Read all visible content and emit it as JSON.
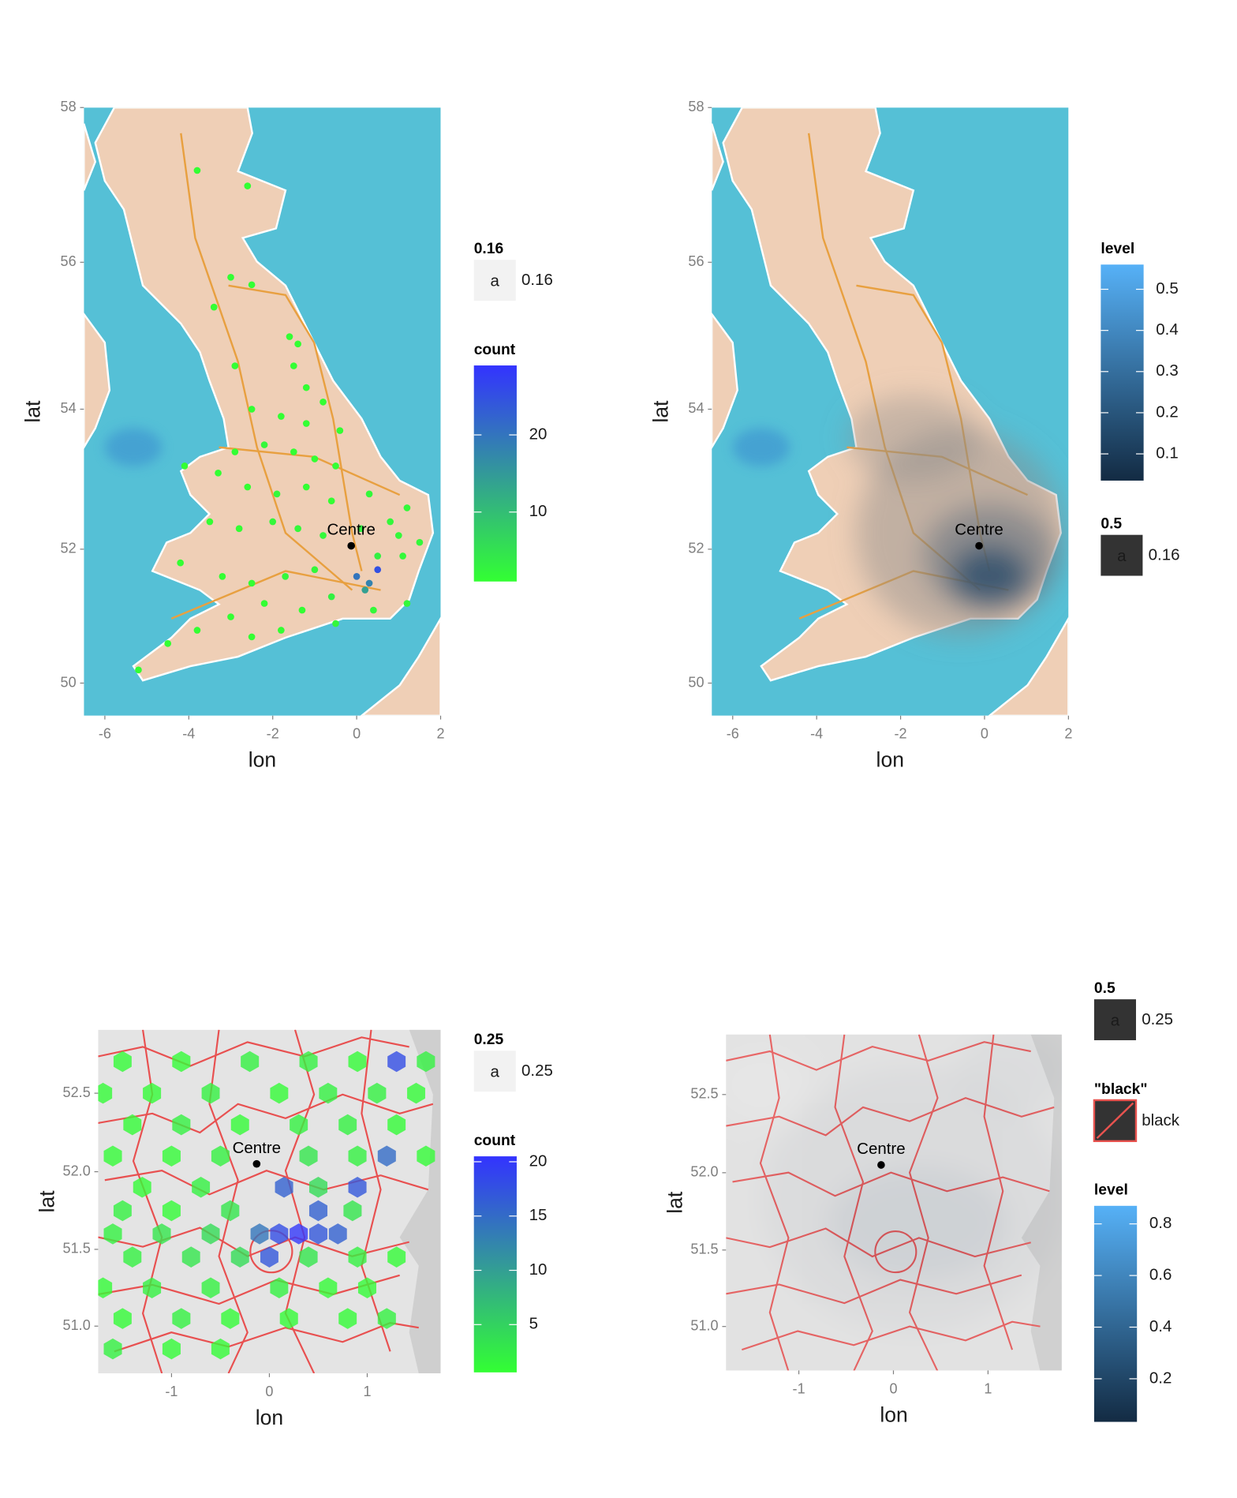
{
  "panels": [
    {
      "xlabel": "lon",
      "ylabel": "lat",
      "projection": "mercator",
      "xlim": [
        -6.5,
        2
      ],
      "ylim": [
        49.5,
        58
      ],
      "xticks": [
        -6,
        -4,
        -2,
        0,
        2
      ],
      "yticks": [
        50,
        52,
        54,
        56,
        58
      ],
      "centre": {
        "label": "Centre",
        "lon": -0.13,
        "lat": 52.05
      },
      "layer": "points",
      "points": {
        "lon": [
          -3.8,
          -2.6,
          -3.0,
          -2.5,
          -3.4,
          -1.6,
          -1.4,
          -2.9,
          -1.5,
          -1.2,
          -0.8,
          -2.5,
          -1.8,
          -1.2,
          -0.4,
          -2.9,
          -2.2,
          -1.5,
          -1.0,
          -0.5,
          -4.1,
          -3.3,
          -2.6,
          -1.9,
          -1.2,
          -0.6,
          0.3,
          1.2,
          0.8,
          -3.5,
          -2.8,
          -2.0,
          -1.4,
          -0.8,
          0.1,
          1.0,
          1.5,
          -4.2,
          -3.2,
          -2.5,
          -1.7,
          -1.0,
          0.5,
          1.1,
          0.0,
          0.3,
          0.5,
          0.2,
          -0.6,
          -1.3,
          -2.2,
          -3.0,
          -3.8,
          -4.5,
          -5.2,
          -1.8,
          -0.5,
          0.4,
          1.2,
          -2.5
        ],
        "lat": [
          57.2,
          57.0,
          55.8,
          55.7,
          55.4,
          55.0,
          54.9,
          54.6,
          54.6,
          54.3,
          54.1,
          54.0,
          53.9,
          53.8,
          53.7,
          53.4,
          53.5,
          53.4,
          53.3,
          53.2,
          53.2,
          53.1,
          52.9,
          52.8,
          52.9,
          52.7,
          52.8,
          52.6,
          52.4,
          52.4,
          52.3,
          52.4,
          52.3,
          52.2,
          52.3,
          52.2,
          52.1,
          51.8,
          51.6,
          51.5,
          51.6,
          51.7,
          51.9,
          51.9,
          51.6,
          51.5,
          51.7,
          51.4,
          51.3,
          51.1,
          51.2,
          51.0,
          50.8,
          50.6,
          50.2,
          50.8,
          50.9,
          51.1,
          51.2,
          50.7
        ],
        "count": [
          1,
          1,
          1,
          1,
          1,
          1,
          1,
          1,
          1,
          1,
          1,
          1,
          1,
          1,
          1,
          1,
          2,
          1,
          1,
          1,
          1,
          1,
          1,
          2,
          1,
          1,
          2,
          2,
          2,
          1,
          1,
          2,
          2,
          2,
          3,
          2,
          2,
          1,
          1,
          1,
          2,
          2,
          3,
          2,
          20,
          18,
          25,
          14,
          3,
          1,
          1,
          1,
          1,
          1,
          1,
          1,
          2,
          2,
          2,
          1
        ]
      },
      "legend": [
        {
          "title": "0.16",
          "key": {
            "text": "a",
            "fill": "#f2f2f2"
          },
          "label": "0.16"
        },
        {
          "title": "count",
          "colorbar": {
            "limits": [
              1,
              29
            ],
            "ticks": [
              10,
              20
            ],
            "colors": [
              "#33ff33",
              "#3333ff"
            ]
          }
        }
      ]
    },
    {
      "xlabel": "lon",
      "ylabel": "lat",
      "projection": "mercator",
      "xlim": [
        -6.5,
        2
      ],
      "ylim": [
        49.5,
        58
      ],
      "xticks": [
        -6,
        -4,
        -2,
        0,
        2
      ],
      "yticks": [
        50,
        52,
        54,
        56,
        58
      ],
      "centre": {
        "label": "Centre",
        "lon": -0.13,
        "lat": 52.05
      },
      "layer": "density",
      "legend": [
        {
          "title": "level",
          "colorbar": {
            "limits": [
              0.035,
              0.56
            ],
            "ticks": [
              0.1,
              0.2,
              0.3,
              0.4,
              0.5
            ],
            "colors": [
              "#132b43",
              "#56b1f7"
            ]
          }
        },
        {
          "title": "0.5",
          "key": {
            "text": "a",
            "fill": "#333333"
          },
          "label": "0.16"
        }
      ]
    },
    {
      "xlabel": "lon",
      "ylabel": "lat",
      "projection": "mercator",
      "xlim": [
        -1.75,
        1.75
      ],
      "ylim": [
        50.69,
        52.9
      ],
      "xticks": [
        -1,
        0,
        1
      ],
      "yticks": [
        {
          "value": 51,
          "label": "51.0"
        },
        51.5,
        {
          "value": 52,
          "label": "52.0"
        },
        52.5
      ],
      "centre": {
        "label": "Centre",
        "lon": -0.13,
        "lat": 52.05
      },
      "layer": "hex",
      "points": {
        "lon": [
          -1.5,
          -0.9,
          -0.2,
          0.4,
          0.9,
          1.3,
          1.6,
          -1.7,
          -1.2,
          -0.6,
          0.1,
          0.6,
          1.1,
          1.5,
          -1.4,
          -0.9,
          -0.3,
          0.3,
          0.8,
          1.3,
          -1.6,
          -1.0,
          -0.5,
          0.4,
          0.9,
          1.2,
          1.6,
          -1.3,
          -0.7,
          0.15,
          0.5,
          0.9,
          -1.5,
          -1.0,
          -0.4,
          0.5,
          0.85,
          -1.6,
          -1.1,
          -0.6,
          -0.1,
          0.1,
          0.3,
          0.5,
          0.7,
          -1.4,
          -0.8,
          -0.3,
          0.0,
          0.4,
          0.9,
          1.3,
          -1.7,
          -1.2,
          -0.6,
          0.1,
          0.6,
          1.0,
          -1.5,
          -0.9,
          -0.4,
          0.2,
          0.8,
          1.2,
          -1.6,
          -1.0,
          -0.5
        ],
        "lat": [
          52.7,
          52.7,
          52.7,
          52.7,
          52.7,
          52.7,
          52.7,
          52.5,
          52.5,
          52.5,
          52.5,
          52.5,
          52.5,
          52.5,
          52.3,
          52.3,
          52.3,
          52.3,
          52.3,
          52.3,
          52.1,
          52.1,
          52.1,
          52.1,
          52.1,
          52.1,
          52.1,
          51.9,
          51.9,
          51.9,
          51.9,
          51.9,
          51.75,
          51.75,
          51.75,
          51.75,
          51.75,
          51.6,
          51.6,
          51.6,
          51.6,
          51.6,
          51.6,
          51.6,
          51.6,
          51.45,
          51.45,
          51.45,
          51.45,
          51.45,
          51.45,
          51.45,
          51.25,
          51.25,
          51.25,
          51.25,
          51.25,
          51.25,
          51.05,
          51.05,
          51.05,
          51.05,
          51.05,
          51.05,
          50.85,
          50.85,
          50.85
        ],
        "count": [
          1,
          1,
          2,
          2,
          1,
          18,
          2,
          1,
          1,
          2,
          1,
          2,
          2,
          1,
          1,
          2,
          1,
          2,
          2,
          1,
          1,
          1,
          2,
          3,
          2,
          15,
          1,
          1,
          2,
          16,
          4,
          17,
          2,
          1,
          3,
          16,
          3,
          2,
          3,
          4,
          14,
          18,
          20,
          17,
          16,
          2,
          3,
          4,
          17,
          3,
          2,
          1,
          1,
          2,
          2,
          2,
          1,
          1,
          1,
          2,
          1,
          1,
          1,
          2,
          2,
          1,
          1
        ]
      },
      "legend": [
        {
          "title": "0.25",
          "key": {
            "text": "a",
            "fill": "#f2f2f2"
          },
          "label": "0.25"
        },
        {
          "title": "count",
          "colorbar": {
            "limits": [
              0.6,
              20.5
            ],
            "ticks": [
              5,
              10,
              15,
              20
            ],
            "colors": [
              "#33ff33",
              "#3333ff"
            ]
          }
        }
      ]
    },
    {
      "xlabel": "lon",
      "ylabel": "lat",
      "projection": "mercator",
      "xlim": [
        -1.77,
        1.78
      ],
      "ylim": [
        50.71,
        52.88
      ],
      "xticks": [
        -1,
        0,
        1
      ],
      "yticks": [
        {
          "value": 51,
          "label": "51.0"
        },
        51.5,
        {
          "value": 52,
          "label": "52.0"
        },
        52.5
      ],
      "centre": {
        "label": "Centre",
        "lon": -0.13,
        "lat": 52.05
      },
      "layer": "density",
      "legend": [
        {
          "title": "0.5",
          "key": {
            "text": "a",
            "fill": "#333333"
          },
          "label": "0.25"
        },
        {
          "title": "\"black\"",
          "key": {
            "fill": "#333333",
            "stroke": "#e8534f",
            "slash": true
          },
          "label": "black"
        },
        {
          "title": "level",
          "colorbar": {
            "limits": [
              0.033,
              0.87
            ],
            "ticks": [
              0.2,
              0.4,
              0.6,
              0.8
            ],
            "colors": [
              "#132b43",
              "#56b1f7"
            ]
          }
        }
      ]
    }
  ]
}
